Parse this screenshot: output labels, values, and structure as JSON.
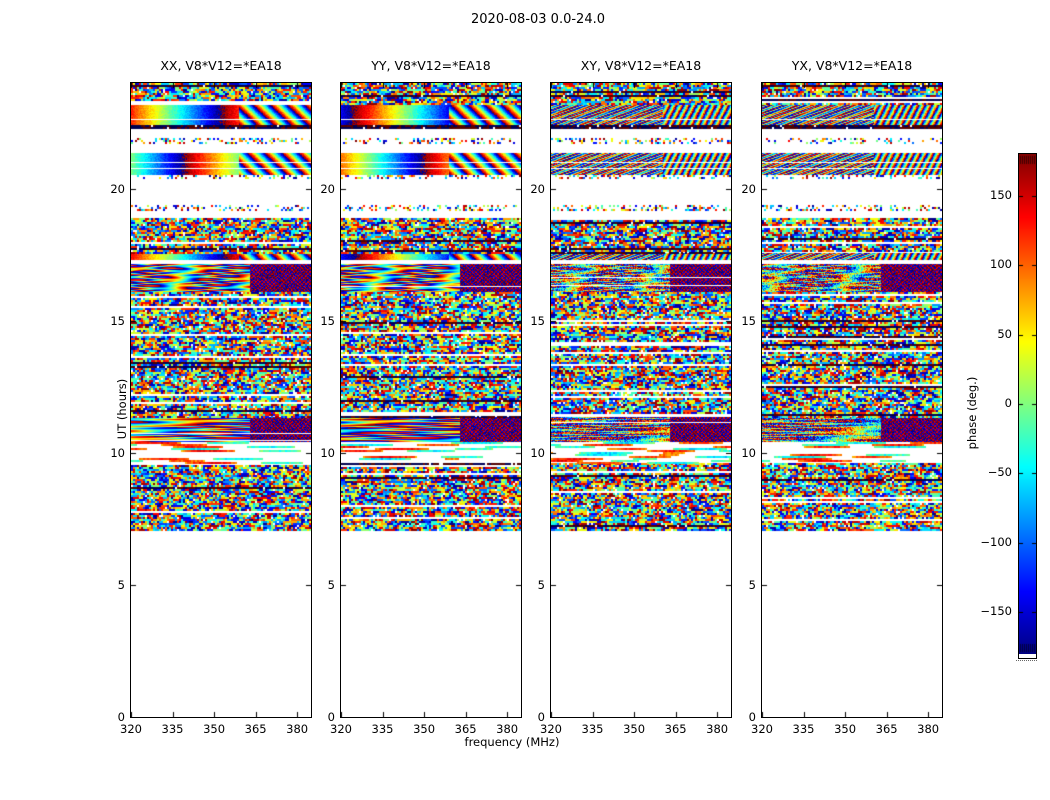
{
  "figure": {
    "suptitle": "2020-08-03 0.0-24.0",
    "background": "#ffffff"
  },
  "chart_data": {
    "type": "heatmap",
    "title": "2020-08-03 0.0-24.0",
    "xlabel": "frequency (MHz)",
    "ylabel": "UT (hours)",
    "x_ticks": [
      320,
      335,
      350,
      365,
      380
    ],
    "y_ticks": [
      0,
      5,
      10,
      15,
      20
    ],
    "xlim": [
      320,
      385
    ],
    "ylim": [
      0,
      24
    ],
    "grid": false,
    "panels": [
      {
        "title": "XX, V8*V12=*EA18",
        "pol": "XX",
        "smooth_phase_ramps": true
      },
      {
        "title": "YY, V8*V12=*EA18",
        "pol": "YY",
        "smooth_phase_ramps": true
      },
      {
        "title": "XY, V8*V12=*EA18",
        "pol": "XY",
        "smooth_phase_ramps": false
      },
      {
        "title": "YX, V8*V12=*EA18",
        "pol": "YX",
        "smooth_phase_ramps": false
      }
    ],
    "colorbar": {
      "label": "phase (deg.)",
      "ticks": [
        150,
        100,
        50,
        0,
        -50,
        -100,
        -150
      ],
      "range": [
        -180,
        180
      ],
      "colormap": "jet",
      "top_color": "#800000",
      "bottom_color": "#000080"
    },
    "time_bands": [
      {
        "ut_start": 0.0,
        "ut_end": 7.05,
        "type": "blank"
      },
      {
        "ut_start": 7.05,
        "ut_end": 9.6,
        "type": "noise"
      },
      {
        "ut_start": 9.6,
        "ut_end": 10.4,
        "type": "lightstreaks"
      },
      {
        "ut_start": 10.4,
        "ut_end": 11.35,
        "type": "streaks"
      },
      {
        "ut_start": 11.35,
        "ut_end": 16.1,
        "type": "noise"
      },
      {
        "ut_start": 16.1,
        "ut_end": 17.15,
        "type": "blobs"
      },
      {
        "ut_start": 17.15,
        "ut_end": 17.3,
        "type": "blank"
      },
      {
        "ut_start": 17.3,
        "ut_end": 17.55,
        "type": "ramp"
      },
      {
        "ut_start": 17.55,
        "ut_end": 18.9,
        "type": "noise"
      },
      {
        "ut_start": 18.9,
        "ut_end": 19.15,
        "type": "blank"
      },
      {
        "ut_start": 19.15,
        "ut_end": 19.4,
        "type": "sparse"
      },
      {
        "ut_start": 19.4,
        "ut_end": 20.4,
        "type": "blank"
      },
      {
        "ut_start": 20.4,
        "ut_end": 20.5,
        "type": "sparse"
      },
      {
        "ut_start": 20.5,
        "ut_end": 21.35,
        "type": "ramp"
      },
      {
        "ut_start": 21.35,
        "ut_end": 21.7,
        "type": "blank"
      },
      {
        "ut_start": 21.7,
        "ut_end": 21.9,
        "type": "sparse"
      },
      {
        "ut_start": 21.9,
        "ut_end": 22.25,
        "type": "blank"
      },
      {
        "ut_start": 22.25,
        "ut_end": 22.4,
        "type": "darkrow"
      },
      {
        "ut_start": 22.4,
        "ut_end": 23.15,
        "type": "ramp"
      },
      {
        "ut_start": 23.15,
        "ut_end": 24.0,
        "type": "noise"
      }
    ]
  }
}
